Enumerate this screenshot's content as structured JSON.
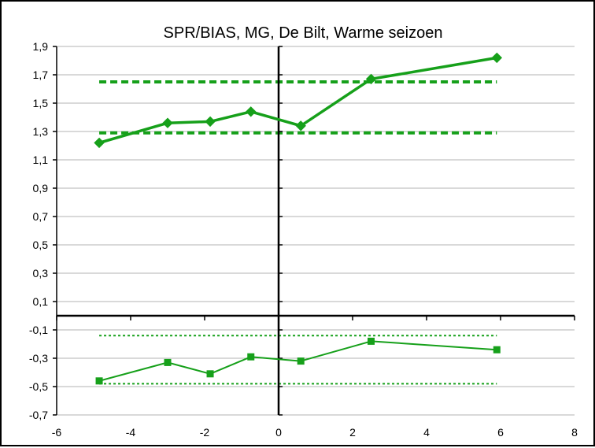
{
  "chart_data": {
    "type": "line",
    "title": "SPR/BIAS, MG, De Bilt, Warme seizoen",
    "xlabel": "",
    "ylabel": "",
    "xlim": [
      -6,
      8
    ],
    "ylim": [
      -0.7,
      2.0
    ],
    "x_ticks": [
      -6,
      -4,
      -2,
      0,
      2,
      4,
      6,
      8
    ],
    "x_tick_labels": [
      "-6",
      "-4",
      "-2",
      "0",
      "2",
      "4",
      "6",
      "8"
    ],
    "y_ticks": [
      -0.7,
      -0.5,
      -0.3,
      -0.1,
      0.1,
      0.3,
      0.5,
      0.7,
      0.9,
      1.1,
      1.3,
      1.5,
      1.7,
      1.9
    ],
    "y_tick_labels": [
      "-0,7",
      "-0,5",
      "-0,3",
      "-0,1",
      "0,1",
      "0,3",
      "0,5",
      "0,7",
      "0,9",
      "1,1",
      "1,3",
      "1,5",
      "1,7",
      "1,9"
    ],
    "grid": "horizontal",
    "legend": "none",
    "series": [
      {
        "x": [
          -4.85,
          -3.0,
          -1.85,
          -0.75,
          0.6,
          2.5,
          5.9
        ],
        "values": [
          1.22,
          1.36,
          1.37,
          1.44,
          1.34,
          1.67,
          1.82
        ],
        "color": "#16a01a",
        "marker": "diamond",
        "line_style": "solid-thick"
      },
      {
        "x": [
          -4.85,
          -3.0,
          -1.85,
          -0.75,
          0.6,
          2.5,
          5.9
        ],
        "values": [
          -0.46,
          -0.33,
          -0.41,
          -0.29,
          -0.32,
          -0.18,
          -0.24
        ],
        "color": "#16a01a",
        "marker": "square",
        "line_style": "solid-thin"
      }
    ],
    "reference_lines": [
      {
        "y": 1.65,
        "x_from": -4.85,
        "x_to": 5.9,
        "style": "dashed-thick",
        "color": "#16a01a"
      },
      {
        "y": 1.29,
        "x_from": -4.85,
        "x_to": 5.9,
        "style": "dashed-thick",
        "color": "#16a01a"
      },
      {
        "y": -0.14,
        "x_from": -4.85,
        "x_to": 5.9,
        "style": "dotted-thin",
        "color": "#16a01a"
      },
      {
        "y": -0.48,
        "x_from": -4.85,
        "x_to": 5.9,
        "style": "dotted-thin",
        "color": "#16a01a"
      }
    ]
  }
}
